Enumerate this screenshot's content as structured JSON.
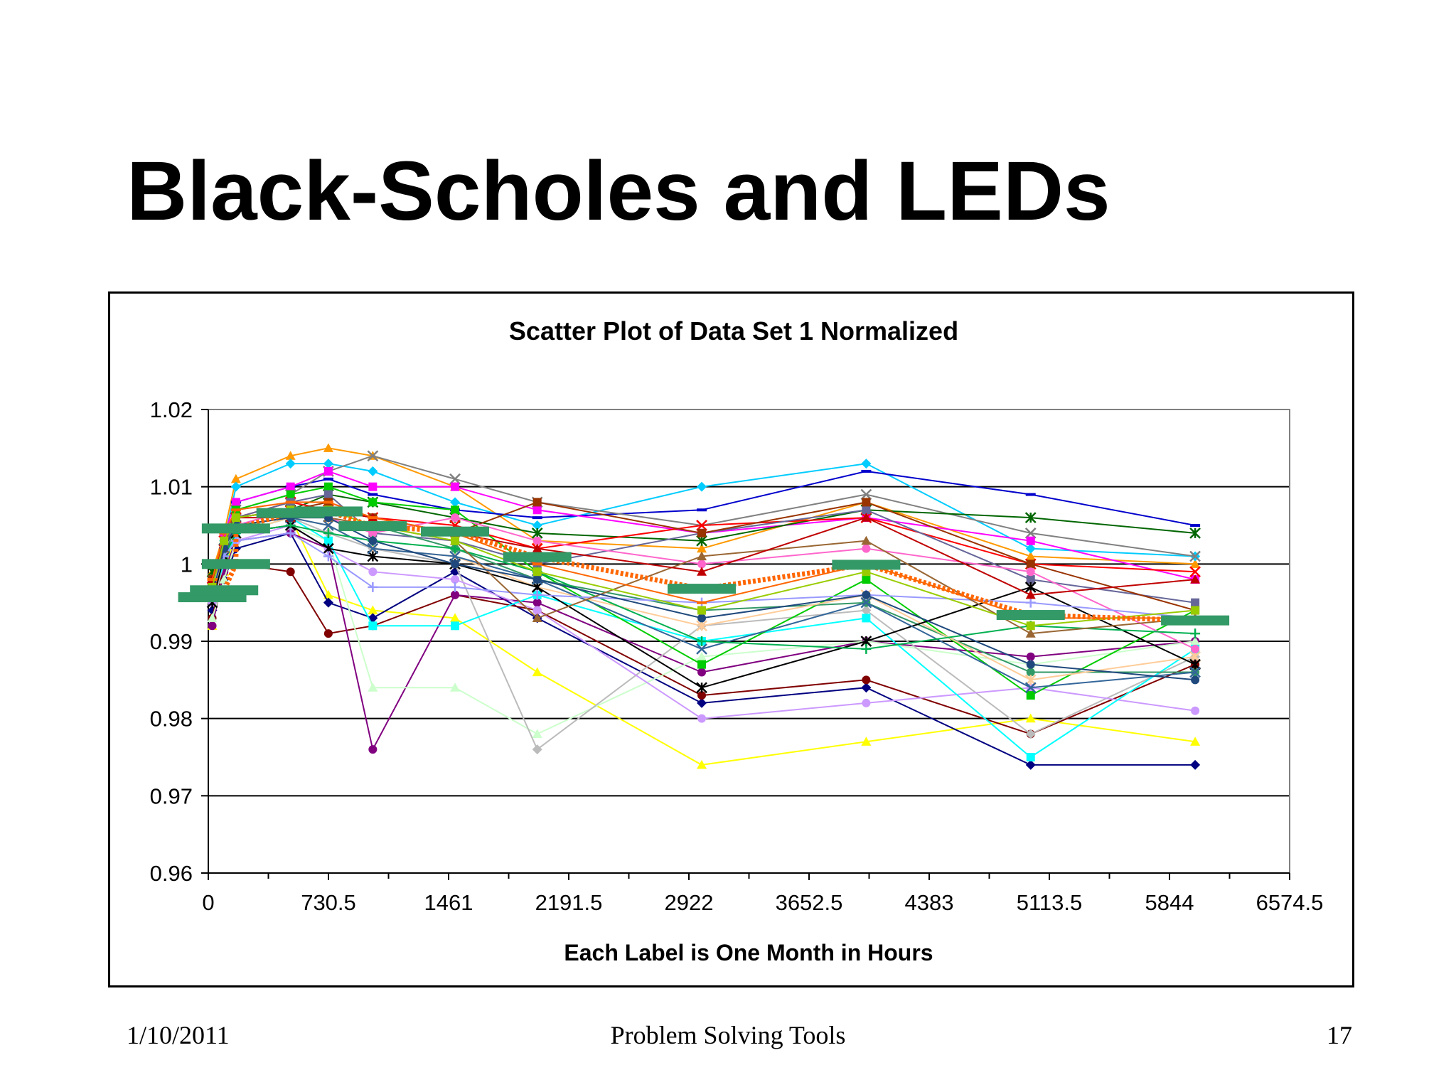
{
  "slide": {
    "title": "Black-Scholes and LEDs",
    "footer_date": "1/10/2011",
    "footer_center": "Problem Solving Tools",
    "page_number": "17"
  },
  "chart_data": {
    "type": "scatter",
    "title": "Scatter Plot of Data Set 1 Normalized",
    "xlabel": "Each Label is One Month in Hours",
    "ylabel": "",
    "xlim": [
      0,
      6574.5
    ],
    "ylim": [
      0.96,
      1.02
    ],
    "x_ticks": [
      0,
      730.5,
      1461,
      2191.5,
      2922,
      3652.5,
      4383,
      5113.5,
      5844,
      6574.5
    ],
    "x_tick_labels": [
      "0",
      "730.5",
      "1461",
      "2191.5",
      "2922",
      "3652.5",
      "4383",
      "5113.5",
      "5844",
      "6574.5"
    ],
    "y_ticks": [
      0.96,
      0.97,
      0.98,
      0.99,
      1,
      1.01,
      1.02
    ],
    "y_tick_labels": [
      "0.96",
      "0.97",
      "0.98",
      "0.99",
      "1",
      "1.01",
      "1.02"
    ],
    "grid": "horizontal",
    "legend": "none",
    "x": [
      24,
      96,
      168,
      500,
      730,
      1000,
      1500,
      2000,
      3000,
      4000,
      5000,
      6000
    ],
    "series": [
      {
        "color": "#ff9900",
        "marker": "triangle",
        "values": [
          0.999,
          1.004,
          1.011,
          1.014,
          1.015,
          1.014,
          1.01,
          1.003,
          1.002,
          1.008,
          1.001,
          1.0
        ]
      },
      {
        "color": "#00ccff",
        "marker": "diamond",
        "values": [
          0.998,
          1.003,
          1.01,
          1.013,
          1.013,
          1.012,
          1.008,
          1.005,
          1.01,
          1.013,
          1.002,
          1.001
        ]
      },
      {
        "color": "#0000cc",
        "marker": "dash",
        "values": [
          0.997,
          1.002,
          1.008,
          1.01,
          1.011,
          1.009,
          1.007,
          1.006,
          1.007,
          1.012,
          1.009,
          1.005
        ]
      },
      {
        "color": "#808080",
        "marker": "x",
        "values": [
          0.996,
          1.003,
          1.007,
          1.009,
          1.012,
          1.014,
          1.011,
          1.008,
          1.005,
          1.009,
          1.004,
          1.001
        ]
      },
      {
        "color": "#ff00ff",
        "marker": "square",
        "values": [
          0.998,
          1.004,
          1.008,
          1.01,
          1.012,
          1.01,
          1.01,
          1.007,
          1.004,
          1.006,
          1.003,
          0.998
        ]
      },
      {
        "color": "#006600",
        "marker": "star",
        "values": [
          0.999,
          1.002,
          1.006,
          1.007,
          1.009,
          1.008,
          1.006,
          1.004,
          1.003,
          1.007,
          1.006,
          1.004
        ]
      },
      {
        "color": "#ffff00",
        "marker": "triangle",
        "values": [
          0.992,
          0.999,
          1.004,
          1.006,
          0.996,
          0.994,
          0.993,
          0.986,
          0.974,
          0.977,
          0.98,
          0.977
        ]
      },
      {
        "color": "#000080",
        "marker": "diamond",
        "values": [
          0.994,
          0.998,
          1.002,
          1.004,
          0.995,
          0.993,
          0.999,
          0.993,
          0.982,
          0.984,
          0.974,
          0.974
        ]
      },
      {
        "color": "#800000",
        "marker": "circle",
        "values": [
          0.993,
          1.0,
          1.0,
          0.999,
          0.991,
          0.992,
          0.996,
          0.994,
          0.983,
          0.985,
          0.978,
          0.987
        ]
      },
      {
        "color": "#800080",
        "marker": "circle",
        "values": [
          0.992,
          0.999,
          1.003,
          1.004,
          1.002,
          0.976,
          0.996,
          0.995,
          0.986,
          0.99,
          0.988,
          0.99
        ]
      },
      {
        "color": "#ccffcc",
        "marker": "triangle",
        "values": [
          0.993,
          0.998,
          1.003,
          1.005,
          1.003,
          0.984,
          0.984,
          0.978,
          0.988,
          0.99,
          0.987,
          0.99
        ]
      },
      {
        "color": "#bbbbbb",
        "marker": "diamond",
        "values": [
          0.995,
          1.0,
          1.004,
          1.006,
          1.004,
          1.002,
          1.0,
          0.976,
          0.992,
          0.994,
          0.978,
          0.988
        ]
      },
      {
        "color": "#cc99ff",
        "marker": "circle",
        "values": [
          0.995,
          1.001,
          1.003,
          1.005,
          1.002,
          0.999,
          0.998,
          0.994,
          0.98,
          0.982,
          0.984,
          0.981
        ]
      },
      {
        "color": "#00ffff",
        "marker": "square",
        "values": [
          0.996,
          1.0,
          1.004,
          1.006,
          1.003,
          0.992,
          0.992,
          0.996,
          0.99,
          0.993,
          0.975,
          0.989
        ]
      },
      {
        "color": "#00cc00",
        "marker": "square",
        "values": [
          0.997,
          1.002,
          1.007,
          1.009,
          1.01,
          1.008,
          1.007,
          0.999,
          0.987,
          0.998,
          0.983,
          0.994
        ]
      },
      {
        "color": "#ff0000",
        "marker": "x",
        "values": [
          0.997,
          1.003,
          1.006,
          1.008,
          1.007,
          1.006,
          1.005,
          1.002,
          1.005,
          1.006,
          1.0,
          0.999
        ]
      },
      {
        "color": "#666699",
        "marker": "square",
        "values": [
          0.998,
          1.002,
          1.006,
          1.008,
          1.009,
          1.004,
          1.003,
          1.0,
          1.004,
          1.007,
          0.998,
          0.995
        ]
      },
      {
        "color": "#339966",
        "marker": "circle",
        "values": [
          0.996,
          1.001,
          1.005,
          1.006,
          1.007,
          1.005,
          1.002,
          0.998,
          0.994,
          0.995,
          0.986,
          0.986
        ]
      },
      {
        "color": "#ffcc99",
        "marker": "star",
        "values": [
          0.996,
          1.001,
          1.004,
          1.006,
          1.005,
          1.002,
          1.001,
          0.997,
          0.992,
          0.996,
          0.985,
          0.988
        ]
      },
      {
        "color": "#993300",
        "marker": "square",
        "values": [
          0.998,
          1.003,
          1.006,
          1.007,
          1.008,
          1.006,
          1.004,
          1.008,
          1.004,
          1.008,
          1.0,
          0.994
        ]
      },
      {
        "color": "#ff66cc",
        "marker": "circle",
        "values": [
          0.997,
          1.002,
          1.005,
          1.007,
          1.006,
          1.004,
          1.006,
          1.003,
          1.0,
          1.002,
          0.999,
          0.989
        ]
      },
      {
        "color": "#000000",
        "marker": "star",
        "values": [
          0.995,
          1.001,
          1.004,
          1.005,
          1.002,
          1.001,
          1.0,
          0.997,
          0.984,
          0.99,
          0.997,
          0.987
        ]
      },
      {
        "color": "#336699",
        "marker": "x",
        "values": [
          0.996,
          1.002,
          1.005,
          1.006,
          1.005,
          1.002,
          1.001,
          0.998,
          0.989,
          0.995,
          0.984,
          0.986
        ]
      },
      {
        "color": "#00b050",
        "marker": "plus",
        "values": [
          0.997,
          1.001,
          1.004,
          1.005,
          1.004,
          1.003,
          1.002,
          0.999,
          0.99,
          0.989,
          0.992,
          0.991
        ]
      },
      {
        "color": "#9999ff",
        "marker": "plus",
        "values": [
          0.997,
          1.001,
          1.003,
          1.004,
          1.001,
          0.997,
          0.997,
          0.996,
          0.995,
          0.996,
          0.995,
          0.993
        ]
      },
      {
        "color": "#996633",
        "marker": "triangle",
        "values": [
          0.998,
          1.002,
          1.005,
          1.006,
          1.006,
          1.005,
          1.003,
          0.993,
          1.001,
          1.003,
          0.991,
          0.993
        ]
      },
      {
        "color": "#c00000",
        "marker": "triangle",
        "values": [
          0.998,
          1.003,
          1.006,
          1.006,
          1.007,
          1.006,
          1.004,
          1.002,
          0.999,
          1.006,
          0.996,
          0.998
        ]
      },
      {
        "color": "#1f497d",
        "marker": "circle",
        "values": [
          0.996,
          1.002,
          1.005,
          1.006,
          1.006,
          1.003,
          1.0,
          0.998,
          0.993,
          0.996,
          0.987,
          0.985
        ]
      },
      {
        "color": "#ff6600",
        "marker": "dash",
        "values": [
          0.998,
          1.004,
          1.007,
          1.008,
          1.008,
          1.006,
          1.004,
          1.0,
          0.995,
          1.0,
          0.993,
          0.993
        ]
      },
      {
        "color": "#99cc00",
        "marker": "square",
        "values": [
          0.997,
          1.003,
          1.006,
          1.007,
          1.007,
          1.005,
          1.003,
          0.999,
          0.994,
          0.999,
          0.992,
          0.994
        ]
      }
    ],
    "mean_series": {
      "color": "#339966",
      "orange_color": "#ff6600",
      "points": [
        {
          "x": 24,
          "y": 0.9957
        },
        {
          "x": 96,
          "y": 0.9966
        },
        {
          "x": 168,
          "y": 1.0
        },
        {
          "x": 168,
          "y": 1.0046
        },
        {
          "x": 500,
          "y": 1.0066
        },
        {
          "x": 730,
          "y": 1.0068
        },
        {
          "x": 1000,
          "y": 1.0049
        },
        {
          "x": 1500,
          "y": 1.0042
        },
        {
          "x": 2000,
          "y": 1.0009
        },
        {
          "x": 3000,
          "y": 0.9968
        },
        {
          "x": 4000,
          "y": 0.9999
        },
        {
          "x": 5000,
          "y": 0.9934
        },
        {
          "x": 6000,
          "y": 0.9927
        }
      ]
    }
  }
}
